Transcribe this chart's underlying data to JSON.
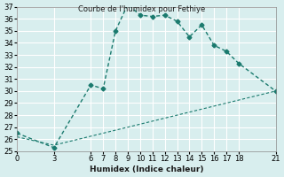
{
  "title": "Courbe de l'humidex pour Fethiye",
  "xlabel": "Humidex (Indice chaleur)",
  "bg_color": "#d8eeee",
  "grid_color": "#ffffff",
  "line_color": "#1a7a6e",
  "xlim": [
    0,
    21
  ],
  "ylim": [
    25,
    37
  ],
  "xticks": [
    0,
    3,
    6,
    7,
    8,
    9,
    10,
    11,
    12,
    13,
    14,
    15,
    16,
    17,
    18,
    21
  ],
  "yticks": [
    25,
    26,
    27,
    28,
    29,
    30,
    31,
    32,
    33,
    34,
    35,
    36,
    37
  ],
  "curve1_x": [
    0,
    3,
    6,
    7,
    8,
    9,
    10,
    11,
    12,
    13,
    14,
    15,
    16,
    17,
    18,
    21
  ],
  "curve1_y": [
    26.5,
    25.3,
    30.5,
    30.2,
    35.0,
    37.2,
    36.3,
    36.2,
    36.3,
    35.8,
    34.5,
    35.5,
    33.8,
    33.3,
    32.3,
    30.0
  ],
  "curve2_x": [
    0,
    3,
    21
  ],
  "curve2_y": [
    26.2,
    25.5,
    30.0
  ]
}
